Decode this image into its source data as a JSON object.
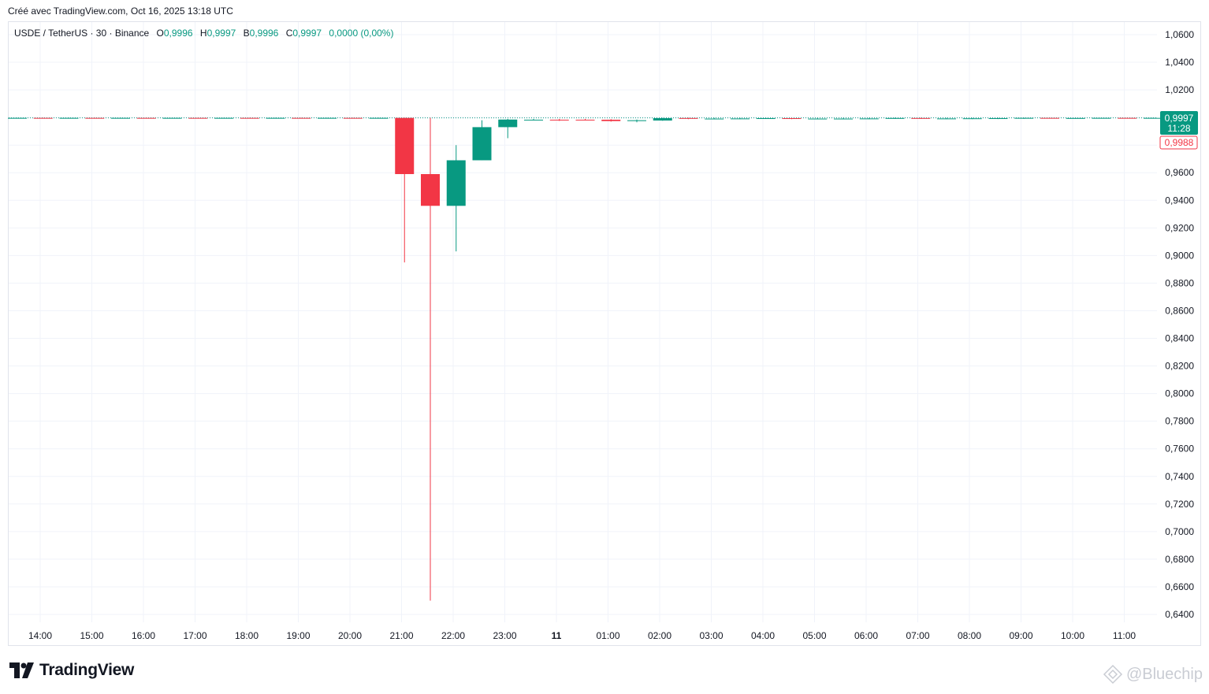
{
  "header": {
    "created_text": "Créé avec TradingView.com, Oct 16, 2025 13:18 UTC"
  },
  "legend": {
    "symbol": "USDE / TetherUS · 30 · Binance",
    "o_label": "O",
    "o_value": "0,9996",
    "h_label": "H",
    "h_value": "0,9997",
    "b_label": "B",
    "b_value": "0,9996",
    "c_label": "C",
    "c_value": "0,9997",
    "change": "0,0000 (0,00%)"
  },
  "price_tags": {
    "last_price": "0,9997",
    "countdown": "11:28",
    "secondary_price": "0,9988"
  },
  "footer": {
    "brand": "TradingView",
    "watermark": "@Bluechip"
  },
  "colors": {
    "up": "#089981",
    "down": "#f23645",
    "grid": "#f0f3fa",
    "axis_text": "#131722"
  },
  "chart_data": {
    "type": "candlestick",
    "title": "USDE / TetherUS · 30 · Binance",
    "ylim": [
      0.635,
      1.065
    ],
    "y_ticks": [
      "1,0600",
      "1,0400",
      "1,0200",
      "0,9600",
      "0,9400",
      "0,9200",
      "0,9000",
      "0,8800",
      "0,8600",
      "0,8400",
      "0,8200",
      "0,8000",
      "0,7800",
      "0,7600",
      "0,7400",
      "0,7200",
      "0,7000",
      "0,6800",
      "0,6600",
      "0,6400"
    ],
    "y_tick_values": [
      1.06,
      1.04,
      1.02,
      0.96,
      0.94,
      0.92,
      0.9,
      0.88,
      0.86,
      0.84,
      0.82,
      0.8,
      0.78,
      0.76,
      0.74,
      0.72,
      0.7,
      0.68,
      0.66,
      0.64
    ],
    "x_tick_labels": [
      "14:00",
      "15:00",
      "16:00",
      "17:00",
      "18:00",
      "19:00",
      "20:00",
      "21:00",
      "22:00",
      "23:00",
      "11",
      "01:00",
      "02:00",
      "03:00",
      "04:00",
      "05:00",
      "06:00",
      "07:00",
      "08:00",
      "09:00",
      "10:00",
      "11:00"
    ],
    "x_tick_bold": [
      false,
      false,
      false,
      false,
      false,
      false,
      false,
      false,
      false,
      false,
      true,
      false,
      false,
      false,
      false,
      false,
      false,
      false,
      false,
      false,
      false,
      false
    ],
    "last_price": 0.9997,
    "candles": [
      {
        "o": 0.9996,
        "h": 0.9998,
        "l": 0.9994,
        "c": 0.9997
      },
      {
        "o": 0.9997,
        "h": 0.9998,
        "l": 0.9995,
        "c": 0.9996
      },
      {
        "o": 0.9996,
        "h": 0.9998,
        "l": 0.9995,
        "c": 0.9997
      },
      {
        "o": 0.9997,
        "h": 0.9998,
        "l": 0.9995,
        "c": 0.9996
      },
      {
        "o": 0.9996,
        "h": 0.9998,
        "l": 0.9995,
        "c": 0.9997
      },
      {
        "o": 0.9997,
        "h": 0.9998,
        "l": 0.9995,
        "c": 0.9996
      },
      {
        "o": 0.9996,
        "h": 0.9998,
        "l": 0.9995,
        "c": 0.9997
      },
      {
        "o": 0.9997,
        "h": 0.9998,
        "l": 0.9995,
        "c": 0.9996
      },
      {
        "o": 0.9996,
        "h": 0.9998,
        "l": 0.9995,
        "c": 0.9997
      },
      {
        "o": 0.9997,
        "h": 0.9998,
        "l": 0.9995,
        "c": 0.9996
      },
      {
        "o": 0.9996,
        "h": 0.9998,
        "l": 0.9995,
        "c": 0.9997
      },
      {
        "o": 0.9997,
        "h": 0.9998,
        "l": 0.9995,
        "c": 0.9996
      },
      {
        "o": 0.9996,
        "h": 0.9998,
        "l": 0.9995,
        "c": 0.9997
      },
      {
        "o": 0.9997,
        "h": 0.9998,
        "l": 0.9995,
        "c": 0.9996
      },
      {
        "o": 0.9996,
        "h": 0.9998,
        "l": 0.9995,
        "c": 0.9997
      },
      {
        "o": 0.9997,
        "h": 0.9998,
        "l": 0.895,
        "c": 0.959
      },
      {
        "o": 0.959,
        "h": 0.9997,
        "l": 0.65,
        "c": 0.936
      },
      {
        "o": 0.936,
        "h": 0.98,
        "l": 0.903,
        "c": 0.969
      },
      {
        "o": 0.969,
        "h": 0.998,
        "l": 0.969,
        "c": 0.993
      },
      {
        "o": 0.993,
        "h": 0.999,
        "l": 0.985,
        "c": 0.9985
      },
      {
        "o": 0.9982,
        "h": 0.999,
        "l": 0.9978,
        "c": 0.9984
      },
      {
        "o": 0.9984,
        "h": 0.999,
        "l": 0.9975,
        "c": 0.9983
      },
      {
        "o": 0.9984,
        "h": 0.999,
        "l": 0.9978,
        "c": 0.9982
      },
      {
        "o": 0.9984,
        "h": 0.9988,
        "l": 0.997,
        "c": 0.9974
      },
      {
        "o": 0.9974,
        "h": 0.9985,
        "l": 0.9965,
        "c": 0.998
      },
      {
        "o": 0.9978,
        "h": 0.9997,
        "l": 0.9976,
        "c": 0.9995
      },
      {
        "o": 0.9996,
        "h": 0.9998,
        "l": 0.9988,
        "c": 0.9994
      },
      {
        "o": 0.999,
        "h": 0.9997,
        "l": 0.9988,
        "c": 0.9992
      },
      {
        "o": 0.9992,
        "h": 0.9997,
        "l": 0.9988,
        "c": 0.9993
      },
      {
        "o": 0.9993,
        "h": 0.9998,
        "l": 0.999,
        "c": 0.9995
      },
      {
        "o": 0.9995,
        "h": 0.9997,
        "l": 0.9988,
        "c": 0.9992
      },
      {
        "o": 0.999,
        "h": 0.9997,
        "l": 0.9988,
        "c": 0.9992
      },
      {
        "o": 0.999,
        "h": 0.9997,
        "l": 0.9988,
        "c": 0.9992
      },
      {
        "o": 0.999,
        "h": 0.9997,
        "l": 0.9988,
        "c": 0.9993
      },
      {
        "o": 0.9993,
        "h": 0.9998,
        "l": 0.999,
        "c": 0.9996
      },
      {
        "o": 0.9996,
        "h": 0.9998,
        "l": 0.999,
        "c": 0.9993
      },
      {
        "o": 0.9991,
        "h": 0.9997,
        "l": 0.9988,
        "c": 0.9993
      },
      {
        "o": 0.9991,
        "h": 0.9997,
        "l": 0.9988,
        "c": 0.9994
      },
      {
        "o": 0.9992,
        "h": 0.9997,
        "l": 0.9989,
        "c": 0.9995
      },
      {
        "o": 0.9995,
        "h": 0.9998,
        "l": 0.999,
        "c": 0.9997
      },
      {
        "o": 0.9997,
        "h": 0.9998,
        "l": 0.9992,
        "c": 0.9995
      },
      {
        "o": 0.9995,
        "h": 0.9998,
        "l": 0.9992,
        "c": 0.9996
      },
      {
        "o": 0.9996,
        "h": 0.9998,
        "l": 0.9993,
        "c": 0.9997
      },
      {
        "o": 0.9997,
        "h": 0.9998,
        "l": 0.9993,
        "c": 0.9996
      },
      {
        "o": 0.9996,
        "h": 0.9998,
        "l": 0.9993,
        "c": 0.9997
      }
    ]
  }
}
